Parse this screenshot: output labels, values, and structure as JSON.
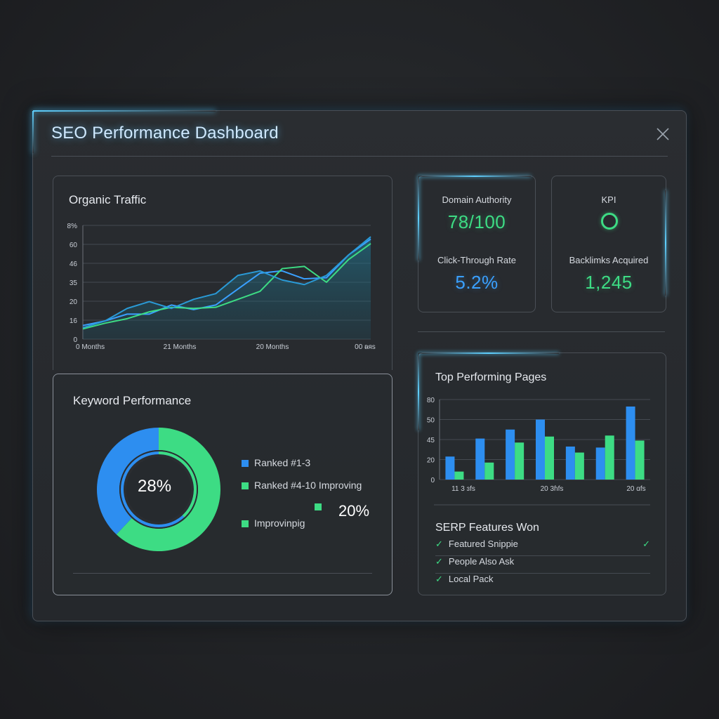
{
  "window": {
    "title": "SEO Performance Dashboard",
    "close_icon": "close-icon"
  },
  "organic": {
    "title": "Organic Traffic",
    "chart_data": {
      "type": "line",
      "title": "Organic Traffic",
      "y_ticks": [
        "8%",
        "60",
        "46",
        "35",
        "20",
        "16",
        "0"
      ],
      "x_ticks": [
        "0 Months",
        "21 Months",
        "20 Months",
        "00 ᴃᴙs"
      ],
      "series": [
        {
          "color": "#3aa0ff",
          "values": [
            12,
            16,
            22,
            22,
            30,
            26,
            30,
            44,
            58,
            60,
            53,
            54,
            74,
            88
          ]
        },
        {
          "color": "#3ddc84",
          "values": [
            9,
            14,
            18,
            24,
            28,
            27,
            28,
            35,
            42,
            62,
            64,
            50,
            70,
            84
          ]
        },
        {
          "color": "#2a9ad6",
          "values": [
            10,
            16,
            27,
            33,
            27,
            35,
            40,
            56,
            60,
            52,
            48,
            56,
            74,
            90
          ]
        }
      ],
      "ylim": [
        0,
        100
      ]
    }
  },
  "kpi": {
    "domain_authority_label": "Domain Authority",
    "domain_authority_value": "78/100",
    "kpi_label": "KPI",
    "ctr_label": "Click-Through Rate",
    "ctr_value": "5.2%",
    "backlinks_label": "Backlimks Acquired",
    "backlinks_value": "1,245",
    "colors": {
      "green": "#3ddc84",
      "blue": "#3aa0ff"
    }
  },
  "keyword": {
    "title": "Keyword Performance",
    "center_value": "28%",
    "secondary_value": "20%",
    "legend": [
      {
        "label": "Ranked #1-3",
        "color": "#2d8ef0"
      },
      {
        "label": "Ranked #4-10  Improving",
        "color": "#3ddc84"
      },
      {
        "label": "Improvinpig",
        "color": "#3ddc84"
      }
    ],
    "chart_data": {
      "type": "pie",
      "slices": [
        {
          "label": "Ranked #1-3",
          "value": 38,
          "color": "#2d8ef0"
        },
        {
          "label": "Ranked #4-10",
          "value": 62,
          "color": "#3ddc84"
        }
      ]
    }
  },
  "pages": {
    "title": "Top Performing Pages",
    "chart_data": {
      "type": "bar",
      "y_ticks": [
        "80",
        "50",
        "45",
        "20",
        "0"
      ],
      "x_ticks": [
        "11 3 ɜfs",
        "20 3ɦfs",
        "20 ɑfs"
      ],
      "series": [
        {
          "color": "#2d8ef0",
          "values": [
            23,
            41,
            50,
            60,
            33,
            32,
            73
          ]
        },
        {
          "color": "#3ddc84",
          "values": [
            8,
            17,
            37,
            43,
            27,
            44,
            39
          ]
        }
      ],
      "ylim": [
        0,
        80
      ]
    },
    "serp_title": "SERP Features Won",
    "serp_items": [
      "Featured Snippie",
      "People Also Ask",
      "Local Pack"
    ]
  }
}
